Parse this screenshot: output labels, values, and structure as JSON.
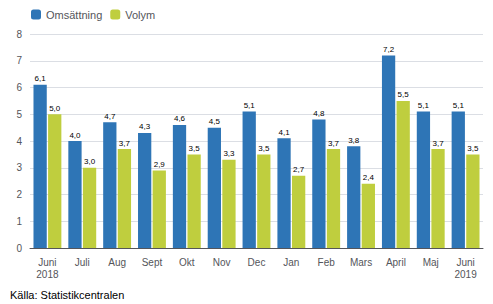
{
  "chart_data": {
    "type": "bar",
    "categories": [
      "Juni\n2018",
      "Juli",
      "Aug",
      "Sept",
      "Okt",
      "Nov",
      "Dec",
      "Jan",
      "Feb",
      "Mars",
      "April",
      "Maj",
      "Juni\n2019"
    ],
    "series": [
      {
        "name": "Omsättning",
        "color": "#2E75B6",
        "values": [
          6.1,
          4.0,
          4.7,
          4.3,
          4.6,
          4.5,
          5.1,
          4.1,
          4.8,
          3.8,
          7.2,
          5.1,
          5.1
        ],
        "value_labels": [
          "6,1",
          "4,0",
          "4,7",
          "4,3",
          "4,6",
          "4,5",
          "5,1",
          "4,1",
          "4,8",
          "3,8",
          "7,2",
          "5,1",
          "5,1"
        ]
      },
      {
        "name": "Volym",
        "color": "#BFCE3E",
        "values": [
          5.0,
          3.0,
          3.7,
          2.9,
          3.5,
          3.3,
          3.5,
          2.7,
          3.7,
          2.4,
          5.5,
          3.7,
          3.5
        ],
        "value_labels": [
          "5,0",
          "3,0",
          "3,7",
          "2,9",
          "3,5",
          "3,3",
          "3,5",
          "2,7",
          "3,7",
          "2,4",
          "5,5",
          "3,7",
          "3,5"
        ]
      }
    ],
    "ylim": [
      0,
      8
    ],
    "yticks": [
      0,
      1,
      2,
      3,
      4,
      5,
      6,
      7,
      8
    ],
    "grid": true,
    "legend": "upper left",
    "data_labels": true,
    "annotations": [
      "Källa: Statistikcentralen"
    ]
  }
}
